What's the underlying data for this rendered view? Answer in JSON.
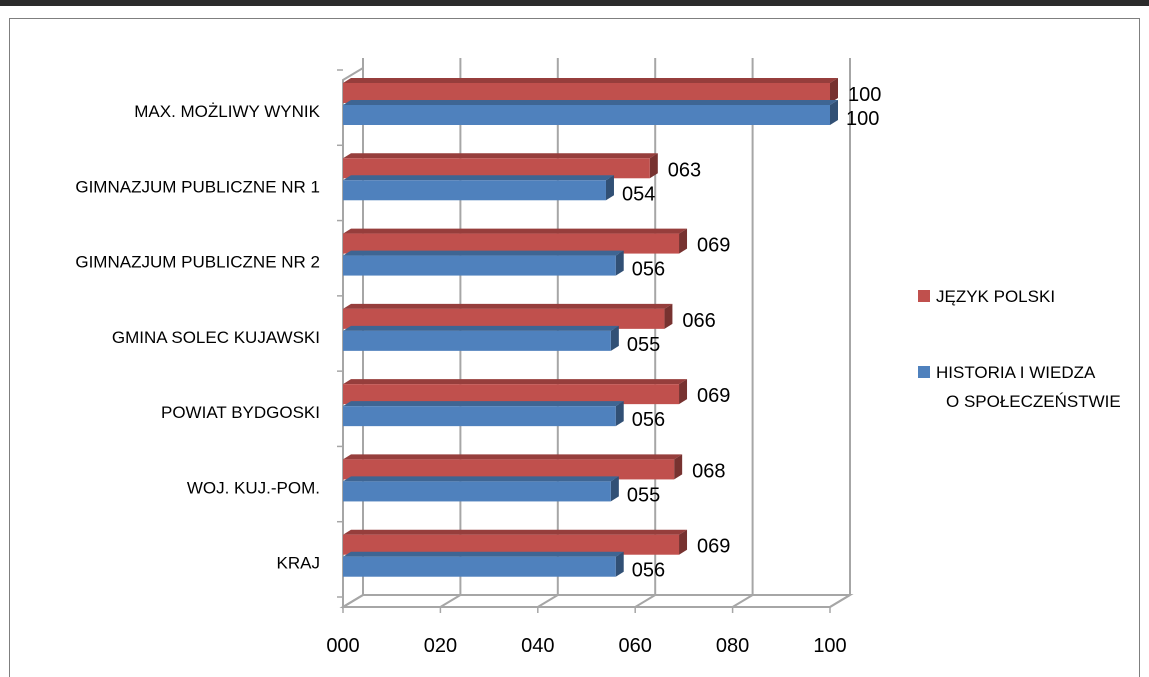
{
  "chart_data": {
    "type": "bar",
    "orientation": "horizontal",
    "style": "3d-clustered",
    "categories": [
      "MAX. MOŻLIWY WYNIK",
      "GIMNAZJUM PUBLICZNE NR 1",
      "GIMNAZJUM PUBLICZNE NR 2",
      "GMINA SOLEC KUJAWSKI",
      "POWIAT BYDGOSKI",
      "WOJ. KUJ.-POM.",
      "KRAJ"
    ],
    "series": [
      {
        "name": "JĘZYK POLSKI",
        "color": "#c0504d",
        "values": [
          100,
          63,
          69,
          66,
          69,
          68,
          69
        ],
        "labels": [
          "100",
          "063",
          "069",
          "066",
          "069",
          "068",
          "069"
        ]
      },
      {
        "name": "HISTORIA I WIEDZA O SPOŁECZEŃSTWIE",
        "name_lines": [
          "HISTORIA I WIEDZA",
          "O SPOŁECZEŃSTWIE"
        ],
        "color": "#4f81bd",
        "values": [
          100,
          54,
          56,
          55,
          56,
          55,
          56
        ],
        "labels": [
          "100",
          "054",
          "056",
          "055",
          "056",
          "055",
          "056"
        ]
      }
    ],
    "x_ticks": [
      "000",
      "020",
      "040",
      "060",
      "080",
      "100"
    ],
    "xlim": [
      0,
      100
    ],
    "grid": true,
    "legend": "right",
    "title": "",
    "xlabel": "",
    "ylabel": ""
  }
}
